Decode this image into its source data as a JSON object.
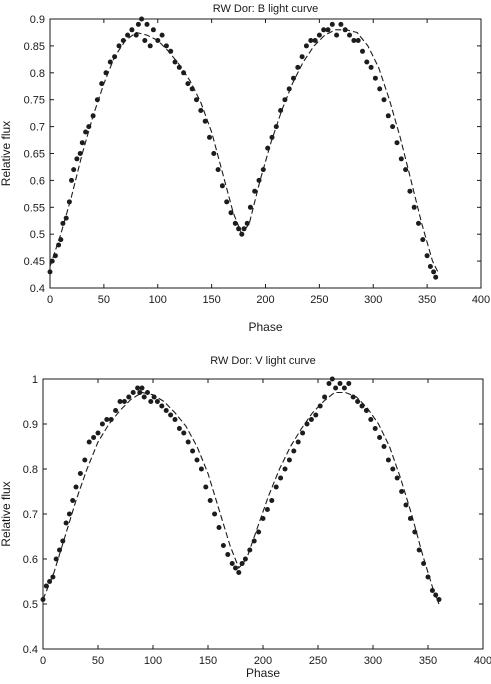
{
  "chart_data": [
    {
      "type": "scatter",
      "title": "RW Dor: B light curve",
      "xlabel": "Phase",
      "ylabel": "Relative flux",
      "xlim": [
        0,
        400
      ],
      "ylim": [
        0.4,
        0.9
      ],
      "xticks": [
        "0",
        "50",
        "100",
        "150",
        "200",
        "250",
        "300",
        "350",
        "400"
      ],
      "yticks": [
        "0.4",
        "0.45",
        "0.5",
        "0.55",
        "0.6",
        "0.65",
        "0.7",
        "0.75",
        "0.8",
        "0.85",
        "0.9"
      ],
      "grid": false,
      "legend": "none",
      "series": [
        {
          "style": "points",
          "x": [
            0,
            2,
            5,
            8,
            10,
            12,
            15,
            18,
            20,
            22,
            25,
            28,
            30,
            33,
            36,
            40,
            44,
            48,
            52,
            56,
            60,
            64,
            68,
            72,
            76,
            80,
            82,
            85,
            88,
            90,
            93,
            96,
            100,
            104,
            108,
            112,
            116,
            120,
            124,
            128,
            132,
            136,
            140,
            144,
            148,
            152,
            156,
            160,
            164,
            168,
            172,
            175,
            178,
            180,
            183,
            186,
            190,
            194,
            198,
            202,
            206,
            210,
            214,
            218,
            222,
            226,
            230,
            234,
            238,
            242,
            246,
            250,
            254,
            258,
            262,
            266,
            270,
            274,
            278,
            282,
            286,
            290,
            294,
            298,
            302,
            306,
            310,
            314,
            318,
            322,
            326,
            330,
            334,
            338,
            342,
            346,
            350,
            353,
            356,
            358
          ],
          "y": [
            0.43,
            0.45,
            0.46,
            0.48,
            0.49,
            0.52,
            0.53,
            0.56,
            0.6,
            0.62,
            0.64,
            0.65,
            0.67,
            0.69,
            0.7,
            0.72,
            0.75,
            0.78,
            0.8,
            0.82,
            0.83,
            0.85,
            0.86,
            0.87,
            0.88,
            0.87,
            0.89,
            0.9,
            0.86,
            0.89,
            0.85,
            0.88,
            0.86,
            0.87,
            0.85,
            0.84,
            0.82,
            0.81,
            0.8,
            0.78,
            0.77,
            0.75,
            0.73,
            0.71,
            0.68,
            0.65,
            0.62,
            0.59,
            0.56,
            0.54,
            0.52,
            0.51,
            0.5,
            0.51,
            0.52,
            0.55,
            0.58,
            0.6,
            0.62,
            0.66,
            0.68,
            0.7,
            0.73,
            0.75,
            0.77,
            0.79,
            0.81,
            0.83,
            0.85,
            0.86,
            0.86,
            0.87,
            0.88,
            0.88,
            0.89,
            0.87,
            0.89,
            0.88,
            0.87,
            0.86,
            0.86,
            0.84,
            0.82,
            0.81,
            0.79,
            0.77,
            0.75,
            0.72,
            0.7,
            0.67,
            0.64,
            0.62,
            0.58,
            0.55,
            0.52,
            0.49,
            0.46,
            0.44,
            0.43,
            0.42
          ]
        },
        {
          "style": "dashed-line",
          "x": [
            0,
            10,
            20,
            30,
            40,
            50,
            60,
            70,
            80,
            90,
            100,
            110,
            120,
            130,
            140,
            150,
            160,
            170,
            178,
            185,
            195,
            205,
            215,
            225,
            235,
            245,
            255,
            265,
            275,
            285,
            295,
            305,
            315,
            325,
            335,
            345,
            355,
            360
          ],
          "y": [
            0.44,
            0.5,
            0.57,
            0.65,
            0.72,
            0.78,
            0.83,
            0.86,
            0.875,
            0.87,
            0.86,
            0.84,
            0.815,
            0.785,
            0.745,
            0.69,
            0.615,
            0.54,
            0.5,
            0.52,
            0.6,
            0.67,
            0.73,
            0.78,
            0.82,
            0.85,
            0.87,
            0.88,
            0.88,
            0.875,
            0.85,
            0.81,
            0.75,
            0.68,
            0.6,
            0.52,
            0.45,
            0.43
          ]
        }
      ]
    },
    {
      "type": "scatter",
      "title": "RW Dor: V light curve",
      "xlabel": "Phase",
      "ylabel": "Relative flux",
      "xlim": [
        0,
        400
      ],
      "ylim": [
        0.4,
        1.0
      ],
      "xticks": [
        "0",
        "50",
        "100",
        "150",
        "200",
        "250",
        "300",
        "350",
        "400"
      ],
      "yticks": [
        "0.4",
        "0.5",
        "0.6",
        "0.7",
        "0.8",
        "0.9",
        "1"
      ],
      "grid": false,
      "legend": "none",
      "series": [
        {
          "style": "points",
          "x": [
            0,
            3,
            6,
            9,
            12,
            15,
            18,
            21,
            24,
            27,
            30,
            34,
            38,
            42,
            46,
            50,
            54,
            58,
            62,
            66,
            70,
            74,
            78,
            82,
            86,
            88,
            90,
            92,
            95,
            98,
            101,
            104,
            108,
            112,
            116,
            120,
            124,
            128,
            132,
            136,
            140,
            144,
            148,
            152,
            156,
            160,
            164,
            168,
            172,
            175,
            178,
            181,
            184,
            188,
            192,
            196,
            200,
            204,
            208,
            212,
            216,
            220,
            224,
            228,
            232,
            236,
            240,
            244,
            248,
            252,
            256,
            260,
            263,
            266,
            270,
            274,
            278,
            282,
            286,
            290,
            294,
            298,
            302,
            306,
            310,
            314,
            318,
            322,
            326,
            330,
            334,
            338,
            342,
            346,
            350,
            354,
            357,
            360
          ],
          "y": [
            0.51,
            0.54,
            0.55,
            0.56,
            0.6,
            0.62,
            0.64,
            0.68,
            0.7,
            0.73,
            0.76,
            0.79,
            0.82,
            0.86,
            0.87,
            0.88,
            0.9,
            0.91,
            0.91,
            0.93,
            0.95,
            0.95,
            0.96,
            0.97,
            0.98,
            0.97,
            0.98,
            0.96,
            0.97,
            0.95,
            0.96,
            0.95,
            0.94,
            0.93,
            0.92,
            0.91,
            0.89,
            0.88,
            0.86,
            0.84,
            0.82,
            0.8,
            0.76,
            0.73,
            0.7,
            0.67,
            0.63,
            0.61,
            0.59,
            0.58,
            0.57,
            0.59,
            0.6,
            0.62,
            0.64,
            0.66,
            0.69,
            0.71,
            0.73,
            0.76,
            0.78,
            0.8,
            0.82,
            0.84,
            0.86,
            0.88,
            0.9,
            0.91,
            0.92,
            0.94,
            0.96,
            0.99,
            1.0,
            0.98,
            0.99,
            0.98,
            0.99,
            0.96,
            0.95,
            0.94,
            0.93,
            0.91,
            0.89,
            0.87,
            0.85,
            0.82,
            0.8,
            0.78,
            0.75,
            0.72,
            0.69,
            0.66,
            0.62,
            0.59,
            0.56,
            0.53,
            0.52,
            0.51
          ]
        },
        {
          "style": "dashed-line",
          "x": [
            0,
            10,
            20,
            30,
            40,
            50,
            60,
            70,
            80,
            90,
            100,
            110,
            120,
            130,
            140,
            150,
            160,
            170,
            178,
            185,
            195,
            205,
            215,
            225,
            235,
            245,
            255,
            265,
            275,
            285,
            295,
            305,
            315,
            325,
            335,
            345,
            355,
            360
          ],
          "y": [
            0.51,
            0.57,
            0.65,
            0.73,
            0.8,
            0.86,
            0.9,
            0.93,
            0.955,
            0.97,
            0.965,
            0.95,
            0.925,
            0.895,
            0.85,
            0.79,
            0.71,
            0.63,
            0.58,
            0.6,
            0.67,
            0.74,
            0.8,
            0.85,
            0.89,
            0.925,
            0.95,
            0.97,
            0.97,
            0.96,
            0.935,
            0.9,
            0.85,
            0.78,
            0.7,
            0.61,
            0.53,
            0.5
          ]
        }
      ]
    }
  ]
}
